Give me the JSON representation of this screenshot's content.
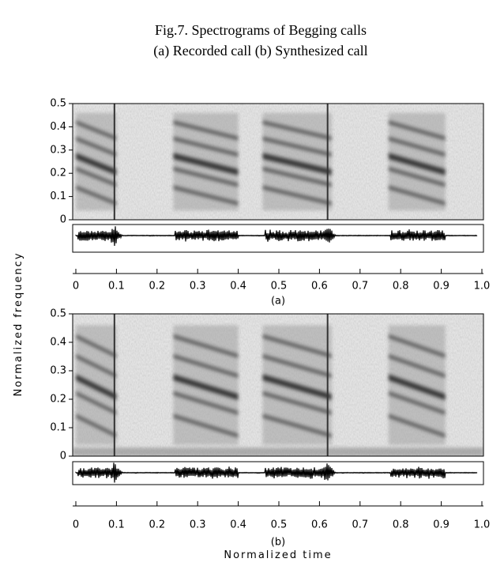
{
  "caption": [
    "Fig.7. Spectrograms of Begging calls",
    "(a) Recorded call (b) Synthesized call"
  ],
  "ylabel": "Normalized frequency",
  "xlabel": "Normalized time",
  "chart_data": [
    {
      "type": "spectrogram",
      "label": "(a)",
      "xlim": [
        0,
        1
      ],
      "ylim": [
        0,
        0.5
      ],
      "xticks": [
        0,
        0.1,
        0.2,
        0.3,
        0.4,
        0.5,
        0.6,
        0.7,
        0.8,
        0.9,
        {
          "value": 1,
          "label": "1.0"
        }
      ],
      "yticks": [
        0,
        0.1,
        0.2,
        0.3,
        0.4,
        0.5
      ]
    },
    {
      "type": "spectrogram",
      "label": "(b)",
      "xlim": [
        0,
        1
      ],
      "ylim": [
        0,
        0.5
      ],
      "xticks": [
        0,
        0.1,
        0.2,
        0.3,
        0.4,
        0.5,
        0.6,
        0.7,
        0.8,
        0.9,
        {
          "value": 1,
          "label": "1.0"
        }
      ],
      "yticks": [
        0,
        0.1,
        0.2,
        0.3,
        0.4,
        0.5
      ]
    }
  ]
}
